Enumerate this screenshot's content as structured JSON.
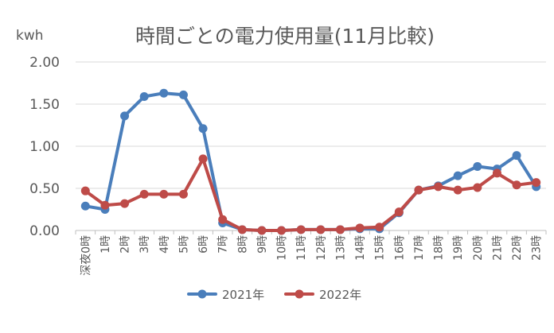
{
  "chart_data": {
    "type": "line",
    "title": "時間ごとの電力使用量(11月比較)",
    "unit_label": "kwh",
    "xlabel": "",
    "ylabel": "",
    "ylim": [
      0,
      2
    ],
    "yticks": [
      "0.00",
      "0.50",
      "1.00",
      "1.50",
      "2.00"
    ],
    "grid": "horizontal",
    "legend_position": "bottom",
    "categories": [
      "深夜0時",
      "1時",
      "2時",
      "3時",
      "4時",
      "5時",
      "6時",
      "7時",
      "8時",
      "9時",
      "10時",
      "11時",
      "12時",
      "13時",
      "14時",
      "15時",
      "16時",
      "17時",
      "18時",
      "19時",
      "20時",
      "21時",
      "22時",
      "23時"
    ],
    "series": [
      {
        "name": "2021年",
        "color": "#4A7EBB",
        "values": [
          0.29,
          0.25,
          1.36,
          1.59,
          1.63,
          1.61,
          1.21,
          0.09,
          0.01,
          0.0,
          0.0,
          0.01,
          0.01,
          0.01,
          0.02,
          0.02,
          0.21,
          0.48,
          0.53,
          0.65,
          0.76,
          0.73,
          0.89,
          0.52
        ]
      },
      {
        "name": "2022年",
        "color": "#BE4B48",
        "values": [
          0.47,
          0.3,
          0.32,
          0.43,
          0.43,
          0.43,
          0.85,
          0.13,
          0.01,
          0.0,
          0.0,
          0.01,
          0.01,
          0.01,
          0.03,
          0.04,
          0.22,
          0.48,
          0.52,
          0.48,
          0.51,
          0.68,
          0.54,
          0.57
        ]
      }
    ]
  }
}
